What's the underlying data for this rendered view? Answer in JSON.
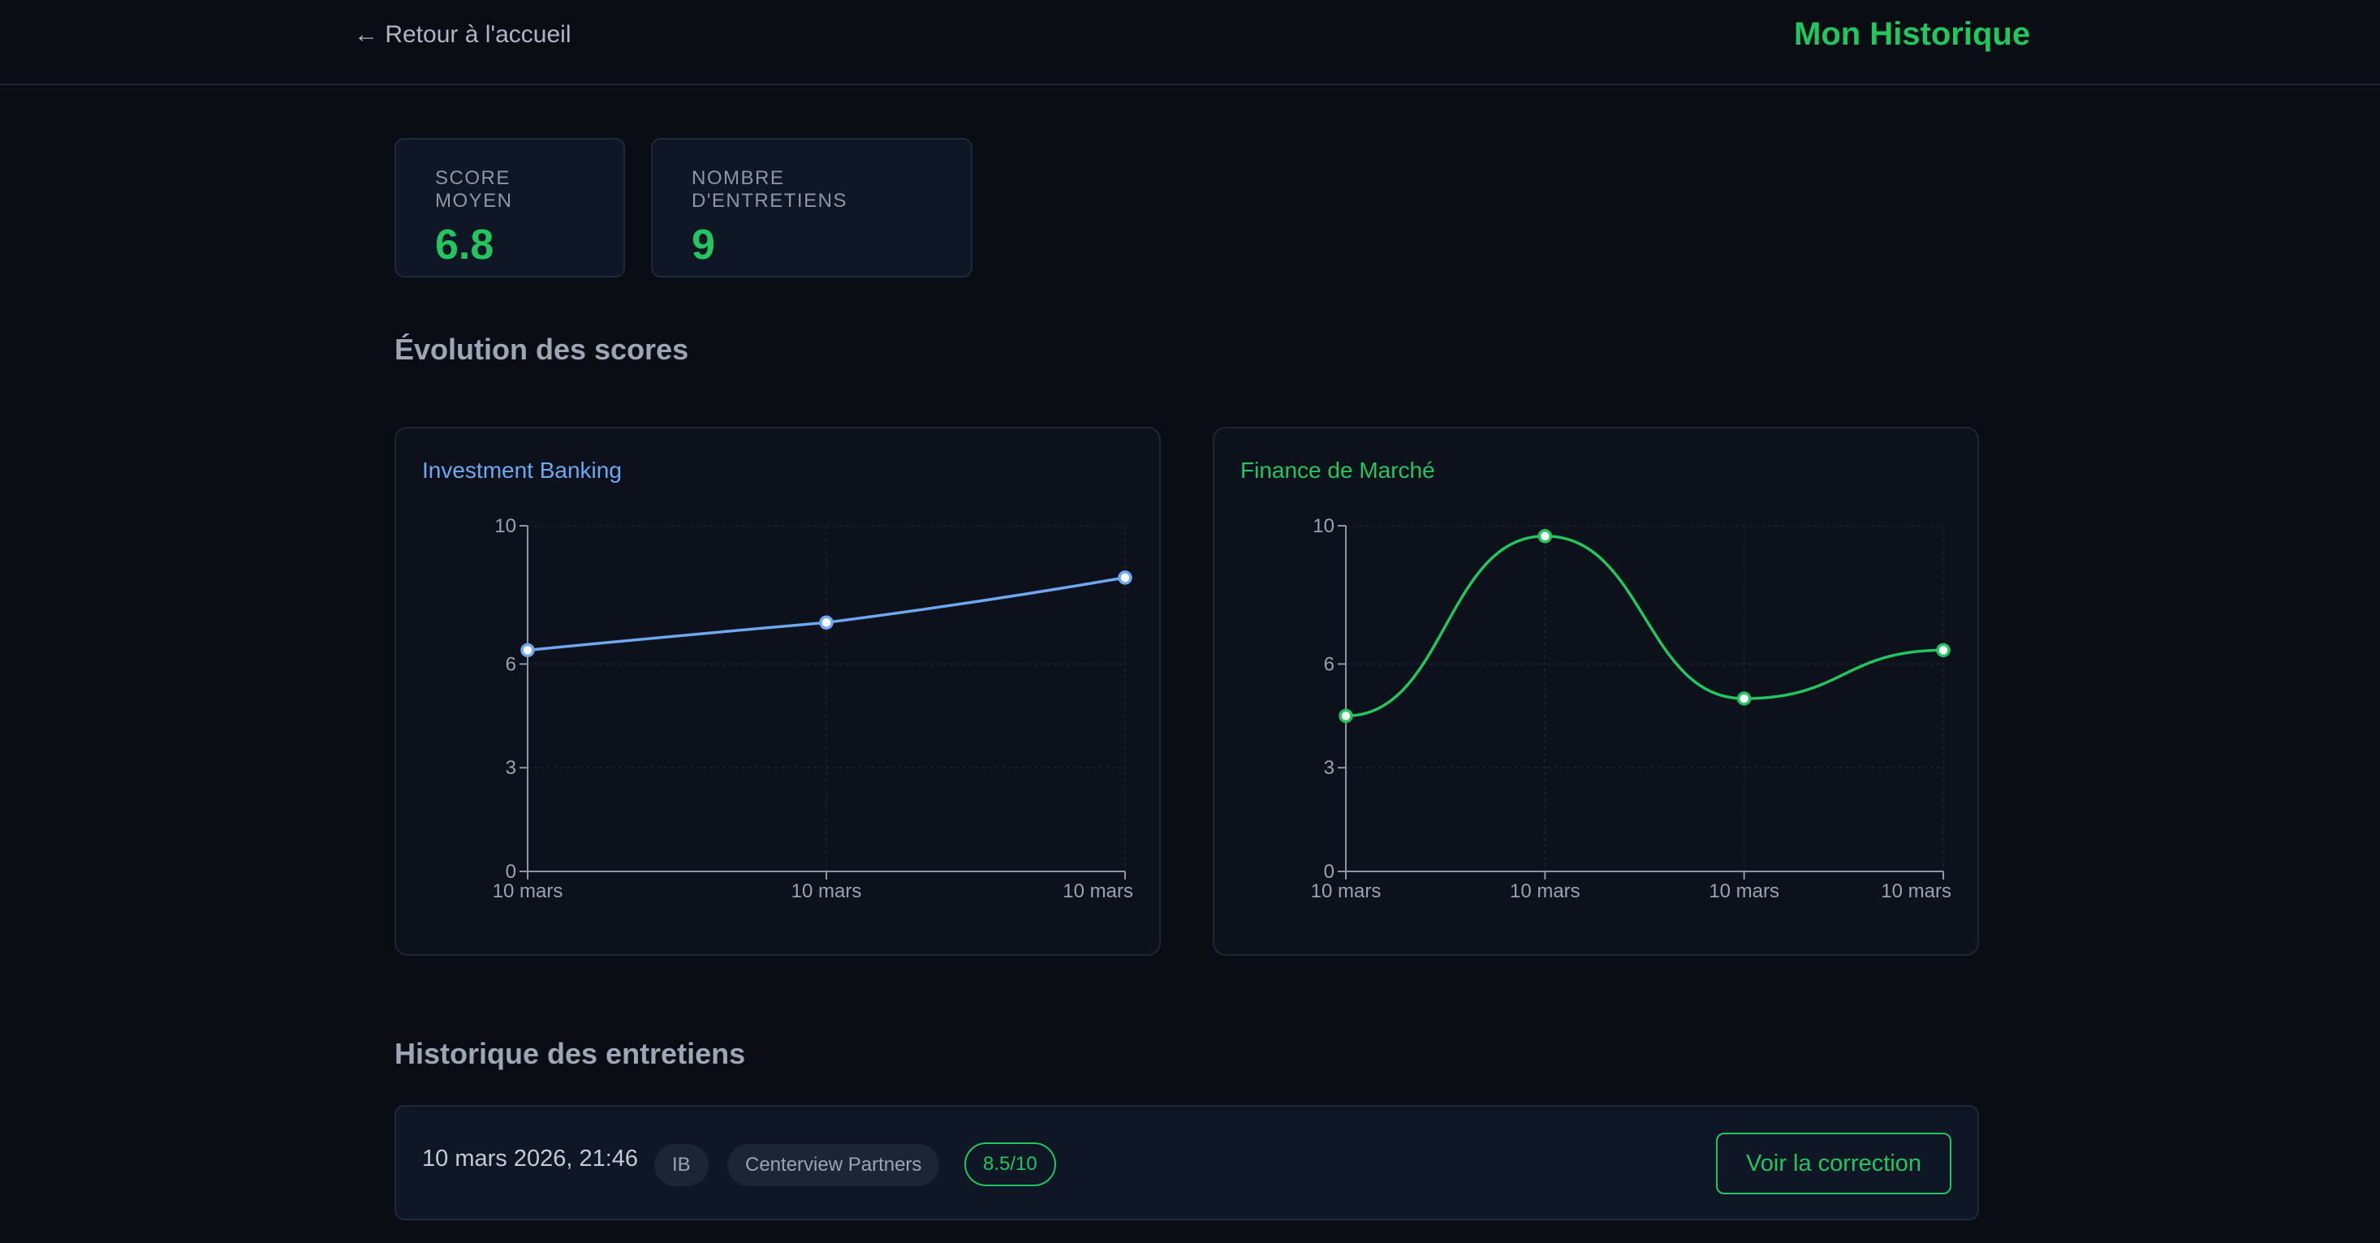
{
  "header": {
    "back_label": "← Retour à l'accueil",
    "title": "Mon Historique"
  },
  "stats": [
    {
      "label": "SCORE MOYEN",
      "value": "6.8"
    },
    {
      "label": "NOMBRE D'ENTRETIENS",
      "value": "9"
    }
  ],
  "sections": {
    "evolution_title": "Évolution des scores",
    "history_title": "Historique des entretiens"
  },
  "colors": {
    "accent": "#22c55e",
    "ib_line": "#6ea8f0",
    "fm_line": "#22c55e"
  },
  "chart_data": [
    {
      "type": "line",
      "title": "Investment Banking",
      "x": [
        "10 mars",
        "10 mars",
        "10 mars"
      ],
      "series": [
        {
          "values": [
            6.4,
            7.2,
            8.5
          ]
        }
      ],
      "yticks": [
        0,
        3,
        6,
        10
      ],
      "ylim": [
        0,
        10
      ],
      "grid": true,
      "smooth": true
    },
    {
      "type": "line",
      "title": "Finance de Marché",
      "x": [
        "10 mars",
        "10 mars",
        "10 mars",
        "10 mars"
      ],
      "series": [
        {
          "values": [
            4.5,
            9.7,
            5,
            6.4
          ]
        }
      ],
      "yticks": [
        0,
        3,
        6,
        10
      ],
      "ylim": [
        0,
        10
      ],
      "grid": true,
      "smooth": true
    }
  ],
  "history": {
    "rows": [
      {
        "date": "10 mars 2026, 21:46",
        "category": "IB",
        "company": "Centerview Partners",
        "score": "8.5/10",
        "action_label": "Voir la correction"
      }
    ]
  }
}
